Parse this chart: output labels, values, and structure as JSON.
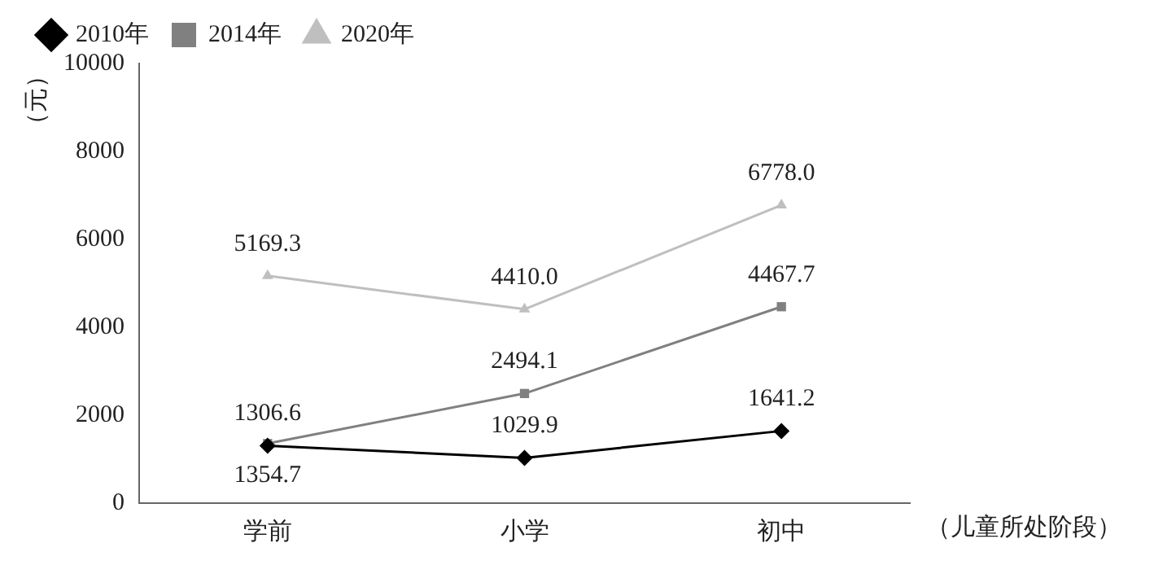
{
  "chart_data": {
    "type": "line",
    "ylabel": "（元）",
    "xlabel": "（儿童所处阶段）",
    "categories": [
      "学前",
      "小学",
      "初中"
    ],
    "series": [
      {
        "name": "2010年",
        "color": "#000000",
        "marker": "diamond",
        "values": [
          1306.6,
          1029.9,
          1641.2
        ],
        "value_labels": [
          "1306.6",
          "1029.9",
          "1641.2"
        ]
      },
      {
        "name": "2014年",
        "color": "#808080",
        "marker": "square",
        "values": [
          1354.7,
          2494.1,
          4467.7
        ],
        "value_labels": [
          "1354.7",
          "2494.1",
          "4467.7"
        ]
      },
      {
        "name": "2020年",
        "color": "#bfbfbf",
        "marker": "triangle",
        "values": [
          5169.3,
          4410.0,
          6778.0
        ],
        "value_labels": [
          "5169.3",
          "4410.0",
          "6778.0"
        ]
      }
    ],
    "ylim": [
      0,
      10000
    ],
    "yticks": [
      0,
      2000,
      4000,
      6000,
      8000,
      10000
    ],
    "grid": false,
    "legend": "top",
    "line_style": "solid"
  }
}
